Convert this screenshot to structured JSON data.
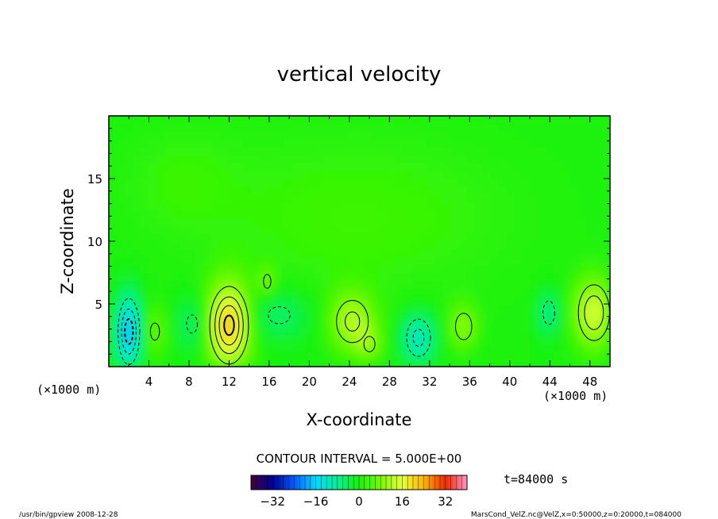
{
  "chart_data": {
    "type": "heatmap",
    "title": "vertical velocity",
    "xlabel": "X-coordinate",
    "ylabel": "Z-coordinate",
    "x_unit": "(×1000 m)",
    "z_unit": "(×1000 m)",
    "xlim": [
      0,
      50
    ],
    "ylim": [
      0,
      20
    ],
    "x_ticks": [
      4,
      8,
      12,
      16,
      20,
      24,
      28,
      32,
      36,
      40,
      44,
      48
    ],
    "y_ticks": [
      5,
      10,
      15
    ],
    "contour_interval_text": "CONTOUR INTERVAL = 5.000E+00",
    "time_label": "t=84000 s",
    "colorbar": {
      "min": -40,
      "max": 40,
      "ticks": [
        -32,
        -16,
        0,
        16,
        32
      ]
    },
    "grid": false,
    "features": [
      {
        "x": 2.0,
        "z": 2.8,
        "value": -18,
        "sx": 0.9,
        "sz": 2.2
      },
      {
        "x": 4.6,
        "z": 2.8,
        "value": 6,
        "sx": 1.0,
        "sz": 1.5
      },
      {
        "x": 8.3,
        "z": 3.4,
        "value": -6,
        "sx": 1.2,
        "sz": 1.6
      },
      {
        "x": 12.0,
        "z": 3.3,
        "value": 22,
        "sx": 1.5,
        "sz": 2.4
      },
      {
        "x": 15.8,
        "z": 6.8,
        "value": 7,
        "sx": 0.6,
        "sz": 0.9
      },
      {
        "x": 17.0,
        "z": 4.1,
        "value": -6,
        "sx": 2.4,
        "sz": 1.5
      },
      {
        "x": 24.3,
        "z": 3.6,
        "value": 12,
        "sx": 1.6,
        "sz": 1.7
      },
      {
        "x": 26.0,
        "z": 1.8,
        "value": 7,
        "sx": 0.9,
        "sz": 1.0
      },
      {
        "x": 30.9,
        "z": 2.3,
        "value": -12,
        "sx": 1.2,
        "sz": 1.5
      },
      {
        "x": 35.4,
        "z": 3.2,
        "value": 9,
        "sx": 1.0,
        "sz": 1.3
      },
      {
        "x": 43.9,
        "z": 4.3,
        "value": -8,
        "sx": 0.8,
        "sz": 1.3
      },
      {
        "x": 48.4,
        "z": 4.3,
        "value": 15,
        "sx": 1.4,
        "sz": 2.0
      },
      {
        "x": 25.0,
        "z": 12.0,
        "value": 3,
        "sx": 12.0,
        "sz": 5.0
      },
      {
        "x": 7.0,
        "z": 15.0,
        "value": 2,
        "sx": 4.0,
        "sz": 3.0
      }
    ]
  },
  "footer": {
    "left": "/usr/bin/gpview   2008-12-28",
    "right": "MarsCond_VelZ.nc@VelZ,x=0:50000,z=0:20000,t=084000"
  }
}
